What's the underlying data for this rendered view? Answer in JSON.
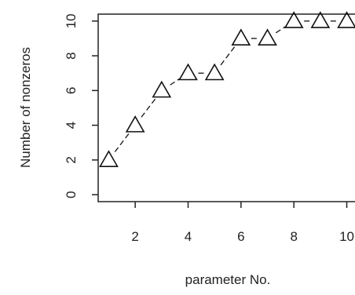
{
  "chart_data": {
    "type": "line",
    "title": "",
    "xlabel": "parameter No.",
    "ylabel": "Number of nonzeros",
    "x": [
      1,
      2,
      3,
      4,
      5,
      6,
      7,
      8,
      9,
      10
    ],
    "series": [
      {
        "values": [
          2,
          4,
          6,
          7,
          7,
          9,
          9,
          10,
          10,
          10
        ],
        "marker": "open-triangle",
        "line_style": "dashed",
        "color": "#111111"
      }
    ],
    "x_ticks": [
      2,
      4,
      6,
      8,
      10
    ],
    "x_tick_labels": [
      "2",
      "4",
      "6",
      "8",
      "10"
    ],
    "y_ticks": [
      0,
      2,
      4,
      6,
      8,
      10
    ],
    "y_tick_labels": [
      "0",
      "2",
      "4",
      "6",
      "8",
      "10"
    ],
    "xlim": [
      0.6,
      10.4
    ],
    "ylim": [
      -0.4,
      10.4
    ],
    "grid": false,
    "legend": "none"
  }
}
